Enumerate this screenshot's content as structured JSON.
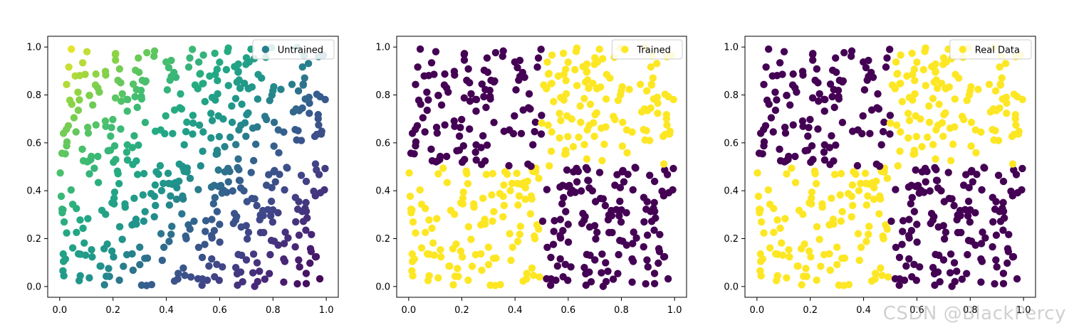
{
  "figure": {
    "watermark": "CSDN @BlackPercy"
  },
  "chart_data": [
    {
      "type": "scatter",
      "title": "",
      "xlabel": "",
      "ylabel": "",
      "xlim": [
        0,
        1
      ],
      "ylim": [
        0,
        1
      ],
      "xticks": [
        "0.0",
        "0.2",
        "0.4",
        "0.6",
        "0.8",
        "1.0"
      ],
      "yticks": [
        "0.0",
        "0.2",
        "0.4",
        "0.6",
        "0.8",
        "1.0"
      ],
      "grid": false,
      "legend": {
        "entries": [
          "Untrained"
        ],
        "placement": "top-right"
      },
      "series": [
        {
          "name": "Untrained",
          "coloring": "continuous viridis gradient (yellow-green at top-left to purple at bottom-right)"
        }
      ],
      "colors": {
        "low": "#440154",
        "high": "#fde725"
      }
    },
    {
      "type": "scatter",
      "title": "",
      "xlabel": "",
      "ylabel": "",
      "xlim": [
        0,
        1
      ],
      "ylim": [
        0,
        1
      ],
      "xticks": [
        "0.0",
        "0.2",
        "0.4",
        "0.6",
        "0.8",
        "1.0"
      ],
      "yticks": [
        "0.0",
        "0.2",
        "0.4",
        "0.6",
        "0.8",
        "1.0"
      ],
      "grid": false,
      "legend": {
        "entries": [
          "Trained"
        ],
        "placement": "top-right"
      },
      "series": [
        {
          "name": "Trained",
          "coloring": "two classes: purple where (x<0.5)==(y>0.5), yellow otherwise"
        }
      ],
      "colors": {
        "class0": "#440154",
        "class1": "#fde725"
      }
    },
    {
      "type": "scatter",
      "title": "",
      "xlabel": "",
      "ylabel": "",
      "xlim": [
        0,
        1
      ],
      "ylim": [
        0,
        1
      ],
      "xticks": [
        "0.0",
        "0.2",
        "0.4",
        "0.6",
        "0.8",
        "1.0"
      ],
      "yticks": [
        "0.0",
        "0.2",
        "0.4",
        "0.6",
        "0.8",
        "1.0"
      ],
      "grid": false,
      "legend": {
        "entries": [
          "Real Data"
        ],
        "placement": "top-right"
      },
      "series": [
        {
          "name": "Real Data",
          "coloring": "two classes: purple where (x<0.5)==(y>0.5), yellow otherwise"
        }
      ],
      "colors": {
        "class0": "#440154",
        "class1": "#fde725"
      }
    }
  ]
}
